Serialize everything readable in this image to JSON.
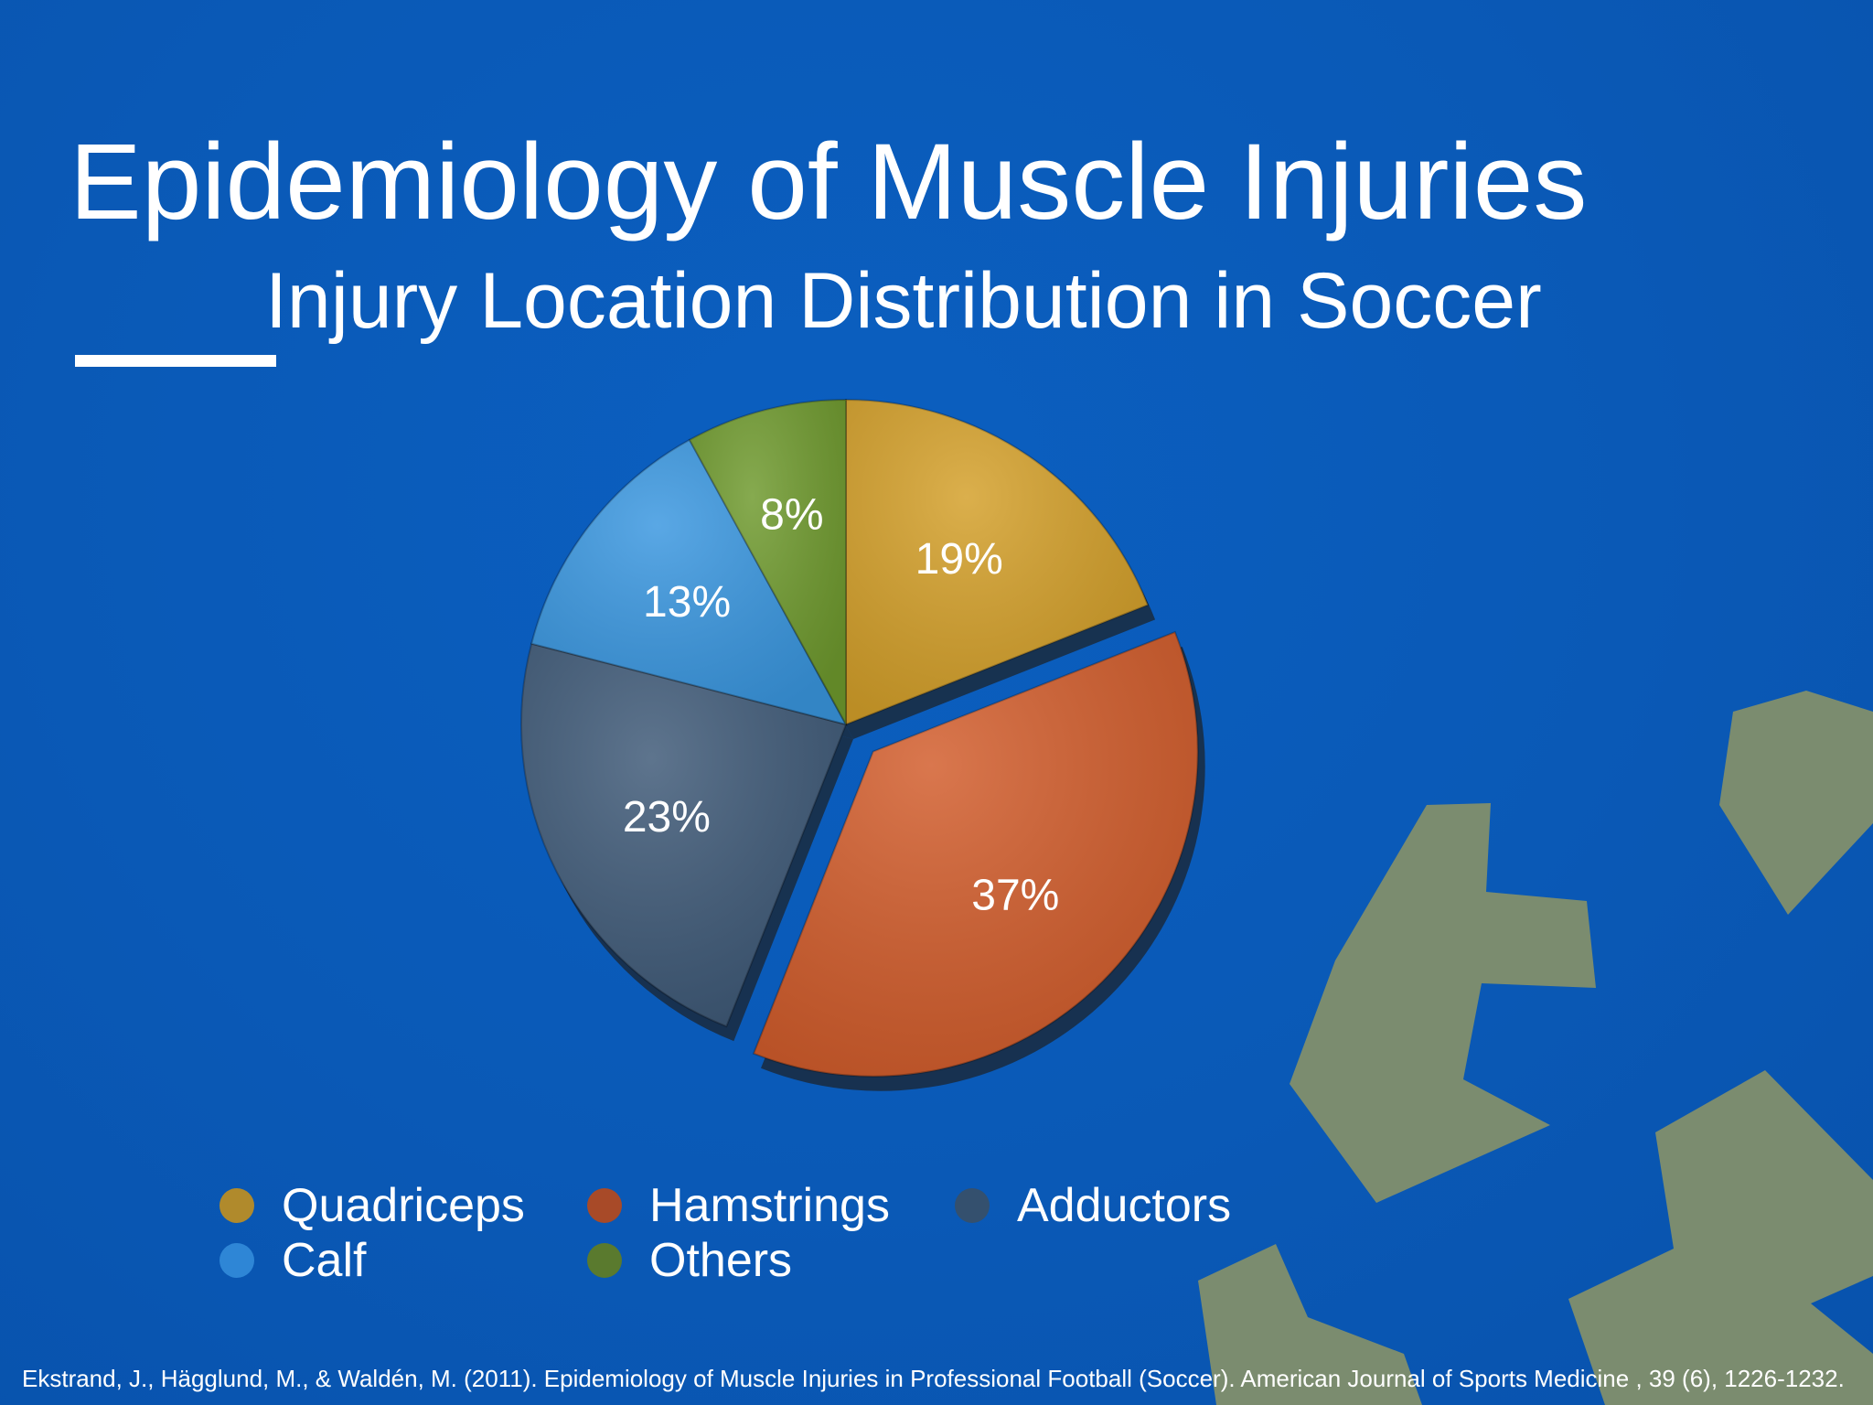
{
  "slide": {
    "title": "Epidemiology of Muscle Injuries",
    "subtitle": "Injury Location Distribution in Soccer",
    "citation": "Ekstrand, J., Hägglund, M., & Waldén, M. (2011). Epidemiology of Muscle Injuries in Professional Football (Soccer). American Journal of Sports Medicine , 39 (6), 1226-1232."
  },
  "colors": {
    "background": "#0a59b6",
    "decoration": "#7b8c6f"
  },
  "chart_data": {
    "type": "pie",
    "title": "",
    "unit": "%",
    "legend_position": "bottom",
    "slices": [
      {
        "name": "Quadriceps",
        "value": 19,
        "label": "19%",
        "color": "#d4a02a",
        "legend_color": "#b08a2c",
        "exploded": false
      },
      {
        "name": "Hamstrings",
        "value": 37,
        "label": "37%",
        "color": "#d25d2c",
        "legend_color": "#a84a28",
        "exploded": true
      },
      {
        "name": "Adductors",
        "value": 23,
        "label": "23%",
        "color": "#3f5a78",
        "legend_color": "#34506e",
        "exploded": false
      },
      {
        "name": "Calf",
        "value": 13,
        "label": "13%",
        "color": "#3a97e0",
        "legend_color": "#2e86d6",
        "exploded": false
      },
      {
        "name": "Others",
        "value": 8,
        "label": "8%",
        "color": "#6f9a2e",
        "legend_color": "#5a7a2e",
        "exploded": false
      }
    ]
  }
}
